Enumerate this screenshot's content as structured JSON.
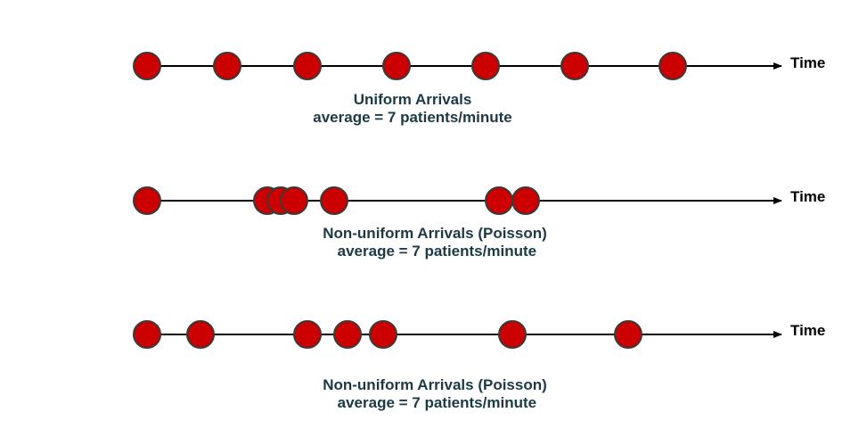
{
  "colors": {
    "dot_fill": "#cc0000",
    "dot_stroke": "#3a3a3a",
    "line": "#000000",
    "caption_text": "#1b3a44"
  },
  "timelines": [
    {
      "axis_label": "Time",
      "title": "Uniform Arrivals",
      "subtitle": "average = 7 patients/minute",
      "arrival_times": [
        165,
        255,
        345,
        445,
        545,
        645,
        755
      ]
    },
    {
      "axis_label": "Time",
      "title": "Non-uniform Arrivals (Poisson)",
      "subtitle": " average = 7 patients/minute",
      "arrival_times": [
        165,
        300,
        315,
        330,
        375,
        560,
        590
      ]
    },
    {
      "axis_label": "Time",
      "title": "Non-uniform Arrivals (Poisson)",
      "subtitle": " average = 7 patients/minute",
      "arrival_times": [
        165,
        225,
        345,
        390,
        430,
        575,
        705
      ]
    }
  ]
}
